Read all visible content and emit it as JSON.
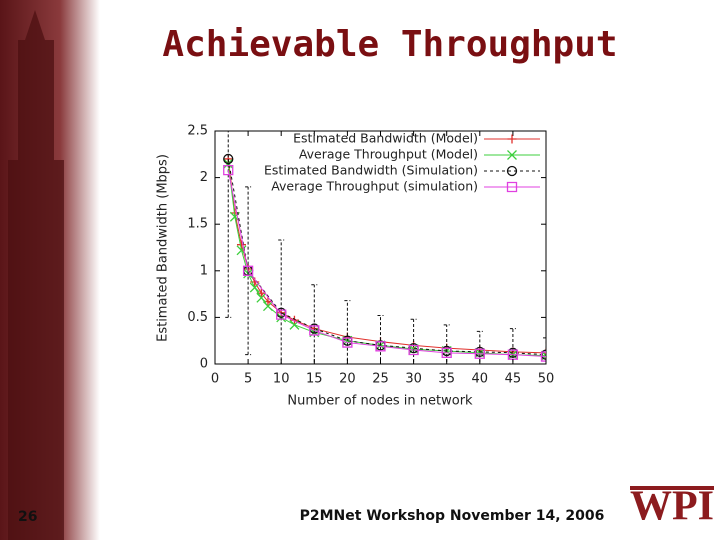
{
  "slide": {
    "title": "Achievable Throughput",
    "page_number": "26",
    "footer": "P2MNet Workshop November 14, 2006",
    "logo": "WPI"
  },
  "chart_data": {
    "type": "line",
    "xlabel": "Number of nodes in network",
    "ylabel": "Estimated Bandwidth (Mbps)",
    "xlim": [
      0,
      50
    ],
    "xticks": [
      0,
      5,
      10,
      15,
      20,
      25,
      30,
      35,
      40,
      45,
      50
    ],
    "ylim": [
      0,
      2.5
    ],
    "yticks": [
      0,
      0.5,
      1,
      1.5,
      2,
      2.5
    ],
    "legend": "upper right",
    "series": [
      {
        "name": "Estimated Bandwidth (Model)",
        "color": "#e0302c",
        "marker": "plus",
        "x": [
          2,
          3,
          4,
          5,
          6,
          7,
          8,
          10,
          12,
          15,
          20,
          25,
          30,
          35,
          40,
          45,
          50
        ],
        "values": [
          2.2,
          1.62,
          1.28,
          1.02,
          0.88,
          0.76,
          0.67,
          0.55,
          0.47,
          0.38,
          0.29,
          0.24,
          0.2,
          0.17,
          0.15,
          0.13,
          0.12
        ]
      },
      {
        "name": "Average Throughput (Model)",
        "color": "#3ccf3c",
        "marker": "cross",
        "x": [
          2,
          3,
          4,
          5,
          6,
          7,
          8,
          10,
          12,
          15,
          20,
          25,
          30,
          35,
          40,
          45,
          50
        ],
        "values": [
          2.15,
          1.58,
          1.22,
          0.97,
          0.82,
          0.71,
          0.62,
          0.5,
          0.42,
          0.34,
          0.25,
          0.2,
          0.16,
          0.14,
          0.12,
          0.1,
          0.09
        ]
      },
      {
        "name": "Estimated Bandwidth (Simulation)",
        "color": "#111111",
        "marker": "circle",
        "x": [
          2,
          5,
          10,
          15,
          20,
          25,
          30,
          35,
          40,
          45,
          50
        ],
        "values": [
          2.2,
          1.0,
          0.55,
          0.38,
          0.25,
          0.2,
          0.17,
          0.14,
          0.13,
          0.12,
          0.1
        ],
        "errors": [
          1.7,
          0.9,
          0.78,
          0.47,
          0.43,
          0.32,
          0.31,
          0.28,
          0.22,
          0.26,
          0.18
        ]
      },
      {
        "name": "Average Throughput (simulation)",
        "color": "#e040e0",
        "marker": "square",
        "x": [
          2,
          5,
          10,
          15,
          20,
          25,
          30,
          35,
          40,
          45,
          50
        ],
        "values": [
          2.08,
          1.0,
          0.53,
          0.36,
          0.23,
          0.19,
          0.15,
          0.12,
          0.11,
          0.1,
          0.08
        ]
      }
    ]
  }
}
